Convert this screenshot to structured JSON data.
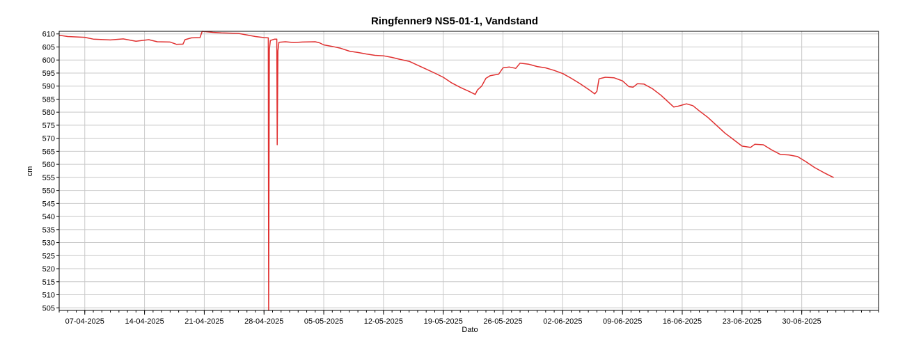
{
  "chart_data": {
    "type": "line",
    "title": "Ringfenner9 NS5-01-1, Vandstand",
    "xlabel": "Dato",
    "ylabel": "cm",
    "ylim": [
      504,
      611
    ],
    "xlim": [
      "2025-04-04",
      "2025-07-09"
    ],
    "grid": true,
    "legend": "none",
    "x_tick_labels": [
      "07-04-2025",
      "14-04-2025",
      "21-04-2025",
      "28-04-2025",
      "05-05-2025",
      "12-05-2025",
      "19-05-2025",
      "26-05-2025",
      "02-06-2025",
      "09-06-2025",
      "16-06-2025",
      "23-06-2025",
      "30-06-2025"
    ],
    "y_ticks": [
      505,
      510,
      515,
      520,
      525,
      530,
      535,
      540,
      545,
      550,
      555,
      560,
      565,
      570,
      575,
      580,
      585,
      590,
      595,
      600,
      605,
      610
    ],
    "series": [
      {
        "color": "#e03030",
        "points": [
          [
            "2025-04-04 00:00",
            609.5
          ],
          [
            "2025-04-05 00:00",
            609.0
          ],
          [
            "2025-04-07 00:00",
            608.7
          ],
          [
            "2025-04-08 00:00",
            608.0
          ],
          [
            "2025-04-10 00:00",
            607.7
          ],
          [
            "2025-04-11 12:00",
            608.1
          ],
          [
            "2025-04-13 00:00",
            607.2
          ],
          [
            "2025-04-14 12:00",
            607.8
          ],
          [
            "2025-04-15 12:00",
            607.0
          ],
          [
            "2025-04-17 00:00",
            606.9
          ],
          [
            "2025-04-17 18:00",
            606.0
          ],
          [
            "2025-04-18 12:00",
            606.1
          ],
          [
            "2025-04-18 18:00",
            607.8
          ],
          [
            "2025-04-19 12:00",
            608.5
          ],
          [
            "2025-04-20 12:00",
            608.6
          ],
          [
            "2025-04-20 18:00",
            611.0
          ],
          [
            "2025-04-22 00:00",
            610.6
          ],
          [
            "2025-04-23 00:00",
            610.4
          ],
          [
            "2025-04-25 00:00",
            610.2
          ],
          [
            "2025-04-26 00:00",
            609.6
          ],
          [
            "2025-04-27 00:00",
            609.0
          ],
          [
            "2025-04-28 00:00",
            608.6
          ],
          [
            "2025-04-28 12:00",
            608.5
          ],
          [
            "2025-04-28 13:00",
            504.0
          ],
          [
            "2025-04-28 15:00",
            604.0
          ],
          [
            "2025-04-28 18:00",
            607.5
          ],
          [
            "2025-04-29 06:00",
            608.0
          ],
          [
            "2025-04-29 12:00",
            608.0
          ],
          [
            "2025-04-29 13:00",
            567.5
          ],
          [
            "2025-04-29 15:00",
            603.5
          ],
          [
            "2025-04-29 18:00",
            606.8
          ],
          [
            "2025-04-30 12:00",
            607.0
          ],
          [
            "2025-05-01 12:00",
            606.7
          ],
          [
            "2025-05-02 12:00",
            606.9
          ],
          [
            "2025-05-04 00:00",
            607.0
          ],
          [
            "2025-05-04 12:00",
            606.6
          ],
          [
            "2025-05-05 00:00",
            605.8
          ],
          [
            "2025-05-06 00:00",
            605.2
          ],
          [
            "2025-05-07 00:00",
            604.5
          ],
          [
            "2025-05-08 00:00",
            603.4
          ],
          [
            "2025-05-09 00:00",
            602.9
          ],
          [
            "2025-05-10 00:00",
            602.3
          ],
          [
            "2025-05-11 00:00",
            601.8
          ],
          [
            "2025-05-12 00:00",
            601.6
          ],
          [
            "2025-05-13 00:00",
            601.0
          ],
          [
            "2025-05-14 00:00",
            600.2
          ],
          [
            "2025-05-15 00:00",
            599.5
          ],
          [
            "2025-05-16 00:00",
            598.0
          ],
          [
            "2025-05-17 00:00",
            596.5
          ],
          [
            "2025-05-18 00:00",
            595.0
          ],
          [
            "2025-05-19 00:00",
            593.4
          ],
          [
            "2025-05-20 00:00",
            591.2
          ],
          [
            "2025-05-21 00:00",
            589.5
          ],
          [
            "2025-05-22 00:00",
            588.0
          ],
          [
            "2025-05-22 18:00",
            586.8
          ],
          [
            "2025-05-23 00:00",
            588.5
          ],
          [
            "2025-05-23 12:00",
            590.0
          ],
          [
            "2025-05-24 00:00",
            593.0
          ],
          [
            "2025-05-24 12:00",
            594.0
          ],
          [
            "2025-05-25 00:00",
            594.3
          ],
          [
            "2025-05-25 12:00",
            594.6
          ],
          [
            "2025-05-26 00:00",
            597.0
          ],
          [
            "2025-05-26 18:00",
            597.3
          ],
          [
            "2025-05-27 12:00",
            596.8
          ],
          [
            "2025-05-28 00:00",
            598.8
          ],
          [
            "2025-05-29 00:00",
            598.4
          ],
          [
            "2025-05-30 00:00",
            597.5
          ],
          [
            "2025-05-31 00:00",
            597.0
          ],
          [
            "2025-06-01 00:00",
            596.0
          ],
          [
            "2025-06-02 00:00",
            594.8
          ],
          [
            "2025-06-03 00:00",
            593.0
          ],
          [
            "2025-06-04 00:00",
            591.0
          ],
          [
            "2025-06-05 00:00",
            588.8
          ],
          [
            "2025-06-05 18:00",
            587.0
          ],
          [
            "2025-06-06 00:00",
            588.0
          ],
          [
            "2025-06-06 06:00",
            592.8
          ],
          [
            "2025-06-07 00:00",
            593.4
          ],
          [
            "2025-06-08 00:00",
            593.2
          ],
          [
            "2025-06-09 00:00",
            592.0
          ],
          [
            "2025-06-09 18:00",
            589.8
          ],
          [
            "2025-06-10 06:00",
            589.6
          ],
          [
            "2025-06-10 18:00",
            590.9
          ],
          [
            "2025-06-11 12:00",
            590.8
          ],
          [
            "2025-06-12 12:00",
            589.0
          ],
          [
            "2025-06-13 12:00",
            586.5
          ],
          [
            "2025-06-14 12:00",
            583.5
          ],
          [
            "2025-06-15 00:00",
            582.0
          ],
          [
            "2025-06-15 12:00",
            582.3
          ],
          [
            "2025-06-16 12:00",
            583.2
          ],
          [
            "2025-06-17 06:00",
            582.5
          ],
          [
            "2025-06-18 00:00",
            580.5
          ],
          [
            "2025-06-19 00:00",
            578.0
          ],
          [
            "2025-06-20 00:00",
            575.0
          ],
          [
            "2025-06-21 00:00",
            572.0
          ],
          [
            "2025-06-22 00:00",
            569.5
          ],
          [
            "2025-06-23 00:00",
            567.0
          ],
          [
            "2025-06-24 00:00",
            566.5
          ],
          [
            "2025-06-24 12:00",
            567.7
          ],
          [
            "2025-06-25 12:00",
            567.5
          ],
          [
            "2025-06-26 12:00",
            565.5
          ],
          [
            "2025-06-27 12:00",
            563.8
          ],
          [
            "2025-06-28 12:00",
            563.6
          ],
          [
            "2025-06-29 12:00",
            563.0
          ],
          [
            "2025-06-30 12:00",
            561.0
          ],
          [
            "2025-07-01 12:00",
            558.8
          ],
          [
            "2025-07-02 12:00",
            557.0
          ],
          [
            "2025-07-03 12:00",
            555.3
          ],
          [
            "2025-07-03 18:00",
            555.0
          ]
        ]
      }
    ]
  }
}
